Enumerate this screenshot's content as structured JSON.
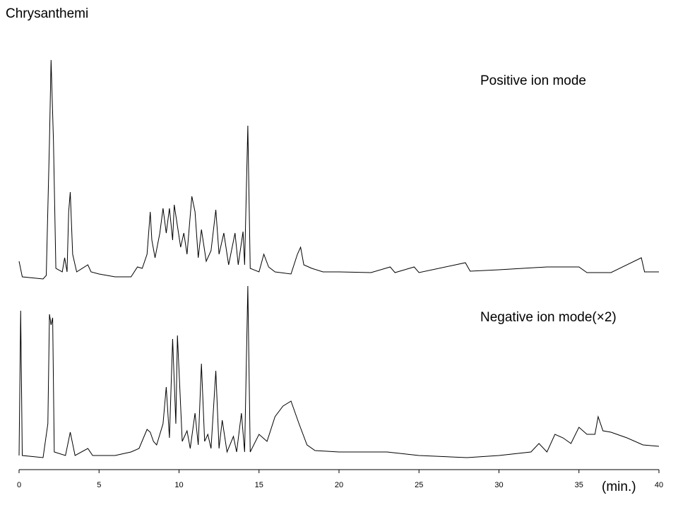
{
  "chart_data": {
    "type": "line",
    "title": "Chrysanthemi",
    "xlabel": "(min.)",
    "xlim": [
      0,
      40
    ],
    "xticks": [
      0,
      5,
      10,
      15,
      20,
      25,
      30,
      35,
      40
    ],
    "ylim": [
      0,
      585
    ],
    "series": [
      {
        "name": "Positive ion mode",
        "color": "#000000",
        "x": [
          0,
          0.2,
          1.5,
          1.7,
          1.9,
          2.0,
          2.15,
          2.3,
          2.7,
          2.85,
          3.0,
          3.1,
          3.2,
          3.35,
          3.6,
          4.3,
          4.5,
          5,
          6,
          7,
          7.4,
          7.7,
          8.0,
          8.2,
          8.3,
          8.5,
          8.8,
          9.0,
          9.2,
          9.4,
          9.6,
          9.7,
          9.9,
          10.1,
          10.3,
          10.5,
          10.8,
          11.0,
          11.2,
          11.4,
          11.7,
          12.0,
          12.3,
          12.5,
          12.8,
          13.1,
          13.5,
          13.7,
          14.0,
          14.1,
          14.3,
          14.45,
          15.0,
          15.3,
          15.6,
          16,
          17,
          17.4,
          17.6,
          17.8,
          18.3,
          19,
          20,
          22,
          23.2,
          23.5,
          24.7,
          25,
          27.9,
          28.2,
          30,
          33,
          35,
          35.5,
          37,
          38.9,
          39.1,
          40
        ],
        "values": [
          295,
          273,
          270,
          275,
          465,
          580,
          465,
          285,
          280,
          300,
          280,
          365,
          393,
          305,
          280,
          290,
          280,
          277,
          273,
          273,
          287,
          285,
          305,
          365,
          325,
          300,
          335,
          370,
          335,
          370,
          325,
          375,
          345,
          315,
          335,
          305,
          387,
          365,
          300,
          340,
          295,
          310,
          368,
          305,
          335,
          290,
          335,
          290,
          337,
          290,
          487,
          285,
          280,
          305,
          287,
          280,
          277,
          305,
          315,
          290,
          285,
          280,
          280,
          279,
          287,
          279,
          287,
          279,
          293,
          281,
          283,
          287,
          287,
          279,
          279,
          300,
          280,
          280
        ]
      },
      {
        "name": "Negative ion mode(×2)",
        "color": "#000000",
        "x": [
          0,
          0.1,
          0.2,
          1.5,
          1.8,
          1.9,
          2.0,
          2.1,
          2.2,
          2.9,
          3.2,
          3.5,
          4.3,
          4.6,
          6,
          7,
          7.5,
          8.0,
          8.2,
          8.4,
          8.6,
          9.0,
          9.2,
          9.4,
          9.6,
          9.8,
          9.9,
          10.2,
          10.5,
          10.7,
          11.0,
          11.2,
          11.4,
          11.6,
          11.8,
          12.0,
          12.3,
          12.5,
          12.7,
          13.0,
          13.4,
          13.6,
          13.9,
          14.1,
          14.3,
          14.45,
          15.0,
          15.5,
          16,
          16.5,
          17,
          17.5,
          18,
          18.5,
          20,
          23,
          25,
          28,
          30,
          32,
          32.5,
          33,
          33.5,
          34,
          34.5,
          35,
          35.5,
          36,
          36.2,
          36.5,
          37,
          38,
          39,
          40
        ],
        "values": [
          20,
          225,
          20,
          17,
          65,
          220,
          205,
          215,
          25,
          20,
          53,
          20,
          30,
          20,
          20,
          25,
          30,
          57,
          53,
          40,
          35,
          65,
          117,
          45,
          185,
          65,
          190,
          40,
          55,
          30,
          80,
          35,
          150,
          40,
          50,
          30,
          140,
          30,
          70,
          25,
          47,
          25,
          80,
          25,
          260,
          25,
          50,
          40,
          75,
          90,
          97,
          65,
          35,
          27,
          25,
          25,
          20,
          17,
          20,
          25,
          37,
          25,
          50,
          45,
          37,
          60,
          50,
          50,
          75,
          55,
          53,
          45,
          35,
          33
        ]
      }
    ]
  }
}
